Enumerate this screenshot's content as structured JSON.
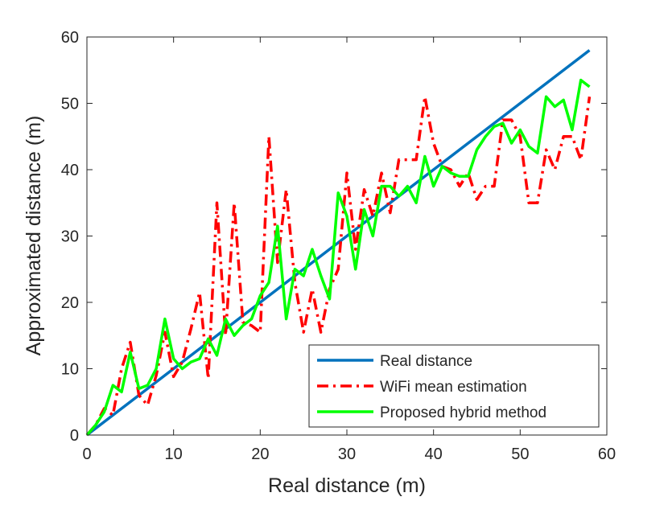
{
  "chart_data": {
    "type": "line",
    "xlabel": "Real distance (m)",
    "ylabel": "Approximated distance (m)",
    "x": [
      0,
      1,
      2,
      3,
      4,
      5,
      6,
      7,
      8,
      9,
      10,
      11,
      12,
      13,
      14,
      15,
      16,
      17,
      18,
      19,
      20,
      21,
      22,
      23,
      24,
      25,
      26,
      27,
      28,
      29,
      30,
      31,
      32,
      33,
      34,
      35,
      36,
      37,
      38,
      39,
      40,
      41,
      42,
      43,
      44,
      45,
      46,
      47,
      48,
      49,
      50,
      51,
      52,
      53,
      54,
      55,
      56,
      57,
      58
    ],
    "series": [
      {
        "name": "Real distance",
        "color": "#0072bd",
        "style": "solid",
        "values": [
          0,
          1,
          2,
          3,
          4,
          5,
          6,
          7,
          8,
          9,
          10,
          11,
          12,
          13,
          14,
          15,
          16,
          17,
          18,
          19,
          20,
          21,
          22,
          23,
          24,
          25,
          26,
          27,
          28,
          29,
          30,
          31,
          32,
          33,
          34,
          35,
          36,
          37,
          38,
          39,
          40,
          41,
          42,
          43,
          44,
          45,
          46,
          47,
          48,
          49,
          50,
          51,
          52,
          53,
          54,
          55,
          56,
          57,
          58
        ]
      },
      {
        "name": "WiFi mean estimation",
        "color": "#ff0000",
        "style": "dashdot",
        "values": [
          0,
          1.5,
          4,
          3,
          10,
          14,
          6,
          4.5,
          9,
          15.5,
          8.8,
          11,
          16,
          21.5,
          8.5,
          35,
          15,
          35,
          17,
          16.5,
          15.5,
          45,
          26,
          37,
          23,
          15.5,
          22,
          15.5,
          22,
          25,
          39.5,
          28,
          37,
          33,
          39.5,
          33.5,
          41.5,
          41.5,
          41.5,
          51,
          44,
          40.5,
          40,
          37.5,
          39.5,
          35.5,
          37.5,
          37.5,
          47.5,
          47.5,
          45,
          35,
          35,
          43,
          40,
          45,
          45,
          41.5,
          51
        ]
      },
      {
        "name": "Proposed hybrid method",
        "color": "#00ff00",
        "style": "solid",
        "values": [
          0,
          1.5,
          3.5,
          7.5,
          6.5,
          12.5,
          7,
          7.5,
          10,
          17.5,
          11.5,
          10,
          11,
          11.5,
          14.5,
          12,
          17.5,
          15,
          16.5,
          17.5,
          21,
          23,
          31.5,
          17.5,
          25,
          24,
          28,
          24,
          20.5,
          36.5,
          33,
          25,
          34,
          30,
          37.5,
          37.5,
          36,
          37.5,
          35,
          42,
          37.5,
          40.5,
          39.5,
          39,
          39,
          43,
          45,
          46.5,
          47,
          44,
          46,
          43.5,
          42.5,
          51,
          49.5,
          50.5,
          46,
          53.5,
          52.5
        ]
      }
    ],
    "xlim": [
      0,
      60
    ],
    "xticks": [
      0,
      10,
      20,
      30,
      40,
      50,
      60
    ],
    "ylim": [
      0,
      60
    ],
    "yticks": [
      0,
      10,
      20,
      30,
      40,
      50,
      60
    ],
    "legend": "lower right"
  }
}
